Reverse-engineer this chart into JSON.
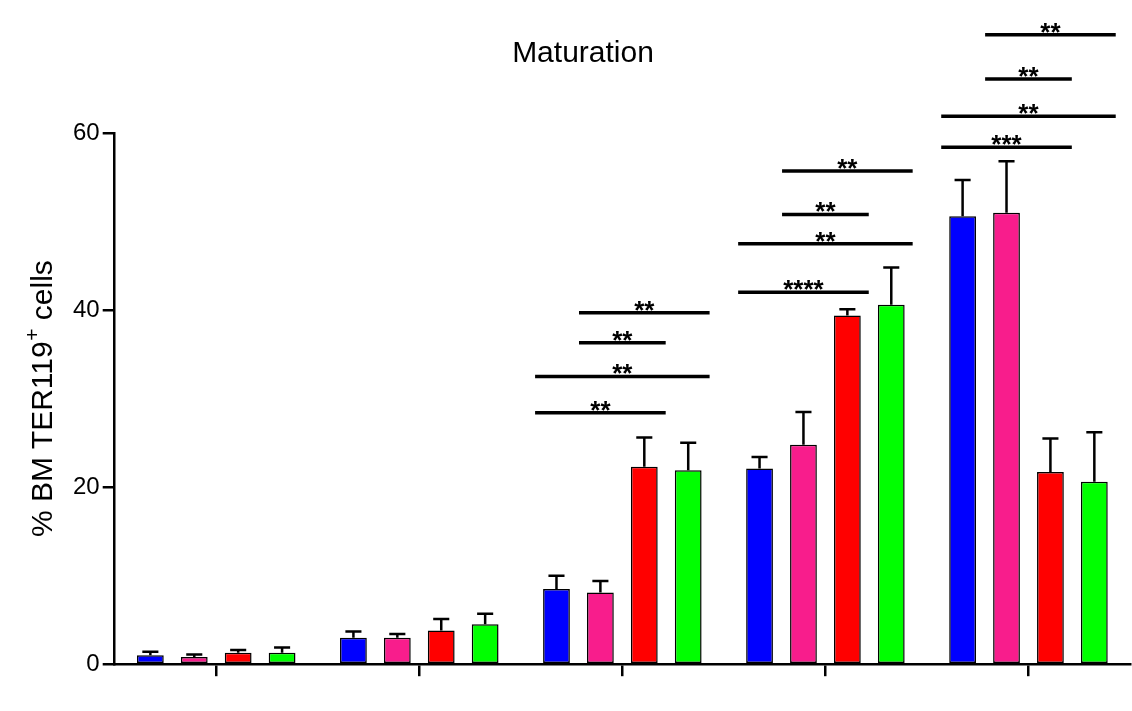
{
  "chart_data": {
    "type": "bar",
    "title": "Maturation",
    "ylabel": "% BM TER119$^{+}$ cells",
    "categories": [
      null,
      null,
      null,
      null,
      null
    ],
    "series": [
      {
        "color": "#0000ff",
        "values": [
          1.0,
          3.0,
          8.5,
          22.1,
          50.6
        ],
        "errors": [
          [
            1.0,
            1.4
          ],
          [
            3.0,
            3.7
          ],
          [
            8.5,
            10.0
          ],
          [
            22.1,
            23.4
          ],
          [
            50.6,
            54.7
          ]
        ]
      },
      {
        "color": "#f81d8c",
        "values": [
          0.8,
          3.0,
          8.1,
          24.8,
          51.0
        ],
        "errors": [
          [
            0.8,
            1.1
          ],
          [
            3.0,
            3.4
          ],
          [
            8.1,
            9.4
          ],
          [
            24.8,
            28.5
          ],
          [
            51.0,
            56.8
          ]
        ]
      },
      {
        "color": "#ff0000",
        "values": [
          1.3,
          3.8,
          22.3,
          39.4,
          21.7
        ],
        "errors": [
          [
            1.3,
            1.6
          ],
          [
            3.8,
            5.1
          ],
          [
            22.3,
            25.6
          ],
          [
            39.4,
            40.1
          ],
          [
            21.7,
            25.5
          ]
        ]
      },
      {
        "color": "#00ff00",
        "values": [
          1.3,
          4.5,
          21.9,
          40.6,
          20.6
        ],
        "errors": [
          [
            1.3,
            1.9
          ],
          [
            4.5,
            5.7
          ],
          [
            21.9,
            25.0
          ],
          [
            40.6,
            44.8
          ],
          [
            20.6,
            26.2
          ]
        ]
      }
    ],
    "ylim": [
      0,
      60
    ],
    "yticks": [
      0,
      20,
      40,
      60
    ],
    "grid": false,
    "legend": false,
    "annotations": [
      "**",
      "**",
      "**",
      "**",
      "****",
      "**",
      "**",
      "**",
      "***",
      "**",
      "**",
      "**"
    ]
  }
}
